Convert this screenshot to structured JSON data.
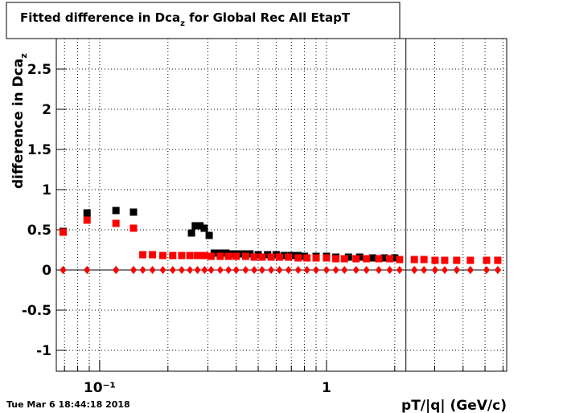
{
  "chart_data": {
    "type": "scatter",
    "title": {
      "text": "Fitted difference in Dca",
      "sub": "z",
      "after": " for Global Rec All EtapT"
    },
    "ylabel": {
      "text": "difference in Dca",
      "sub": "z"
    },
    "xlabel": "pT/|q| (GeV/c)",
    "date_stamp": "Tue Mar  6 18:44:18 2018",
    "xlog": true,
    "grid": true,
    "xlim": [
      0.0644,
      6.23
    ],
    "ylim": [
      -1.26,
      2.88
    ],
    "xticks": [
      {
        "value": 0.1,
        "label": "10⁻¹"
      },
      1
    ],
    "xminor": [
      0.07,
      0.08,
      0.09,
      0.2,
      0.3,
      0.4,
      0.5,
      0.6,
      0.7,
      0.8,
      0.9,
      2,
      3,
      4,
      5,
      6
    ],
    "yticks": [
      -1,
      -0.5,
      0,
      0.5,
      1,
      1.5,
      2,
      2.5
    ],
    "vline": 2.24,
    "series": [
      {
        "color": "#000000",
        "marker": "square",
        "line": false,
        "x": [
          0.069,
          0.088,
          0.118,
          0.141,
          0.254,
          0.264,
          0.277,
          0.289,
          0.304,
          0.32,
          0.34,
          0.36,
          0.38,
          0.4,
          0.43,
          0.46,
          0.5,
          0.55,
          0.6,
          0.65,
          0.7,
          0.75,
          0.8,
          0.9,
          1.0,
          1.1,
          1.25,
          1.4,
          1.6,
          1.8,
          2.0
        ],
        "values": [
          0.48,
          0.71,
          0.74,
          0.72,
          0.46,
          0.55,
          0.55,
          0.52,
          0.43,
          0.21,
          0.21,
          0.21,
          0.2,
          0.2,
          0.2,
          0.2,
          0.19,
          0.19,
          0.19,
          0.18,
          0.18,
          0.18,
          0.17,
          0.17,
          0.17,
          0.16,
          0.16,
          0.16,
          0.15,
          0.15,
          0.15
        ]
      },
      {
        "color": "#ff0000",
        "marker": "square",
        "line": false,
        "x": [
          0.069,
          0.088,
          0.118,
          0.141,
          0.155,
          0.171,
          0.19,
          0.21,
          0.23,
          0.25,
          0.27,
          0.29,
          0.31,
          0.34,
          0.37,
          0.4,
          0.44,
          0.48,
          0.52,
          0.57,
          0.62,
          0.68,
          0.75,
          0.82,
          0.9,
          1.0,
          1.1,
          1.2,
          1.35,
          1.5,
          1.7,
          1.9,
          2.1,
          2.44,
          2.69,
          3.01,
          3.32,
          3.75,
          4.31,
          5.08,
          5.69
        ],
        "values": [
          0.47,
          0.62,
          0.58,
          0.52,
          0.19,
          0.19,
          0.18,
          0.18,
          0.18,
          0.18,
          0.18,
          0.18,
          0.17,
          0.17,
          0.17,
          0.17,
          0.17,
          0.16,
          0.16,
          0.16,
          0.16,
          0.16,
          0.15,
          0.15,
          0.15,
          0.15,
          0.14,
          0.14,
          0.14,
          0.14,
          0.14,
          0.14,
          0.13,
          0.13,
          0.13,
          0.12,
          0.12,
          0.12,
          0.12,
          0.12,
          0.12
        ]
      },
      {
        "color": "#000000",
        "marker": "diamond",
        "line": true,
        "x": [
          0.069,
          0.088,
          0.118,
          0.141,
          2.44,
          3.01,
          3.75,
          4.31,
          5.69
        ],
        "values": [
          0,
          0,
          0,
          0,
          0,
          0,
          0,
          0,
          0
        ]
      },
      {
        "color": "#ff0000",
        "marker": "diamond",
        "line": false,
        "x": [
          0.069,
          0.088,
          0.118,
          0.141,
          0.155,
          0.171,
          0.19,
          0.21,
          0.23,
          0.25,
          0.27,
          0.29,
          0.31,
          0.34,
          0.37,
          0.4,
          0.44,
          0.48,
          0.52,
          0.57,
          0.62,
          0.68,
          0.75,
          0.82,
          0.9,
          1.0,
          1.1,
          1.2,
          1.35,
          1.5,
          1.7,
          1.9,
          2.1,
          2.44,
          2.69,
          3.01,
          3.32,
          3.75,
          4.31,
          5.08,
          5.69
        ],
        "values": [
          0,
          0,
          0,
          0,
          0,
          0,
          0,
          0,
          0,
          0,
          0,
          0,
          0,
          0,
          0,
          0,
          0,
          0,
          0,
          0,
          0,
          0,
          0,
          0,
          0,
          0,
          0,
          0,
          0,
          0,
          0,
          0,
          0,
          0,
          0,
          0,
          0,
          0,
          0,
          0,
          0
        ]
      }
    ]
  }
}
